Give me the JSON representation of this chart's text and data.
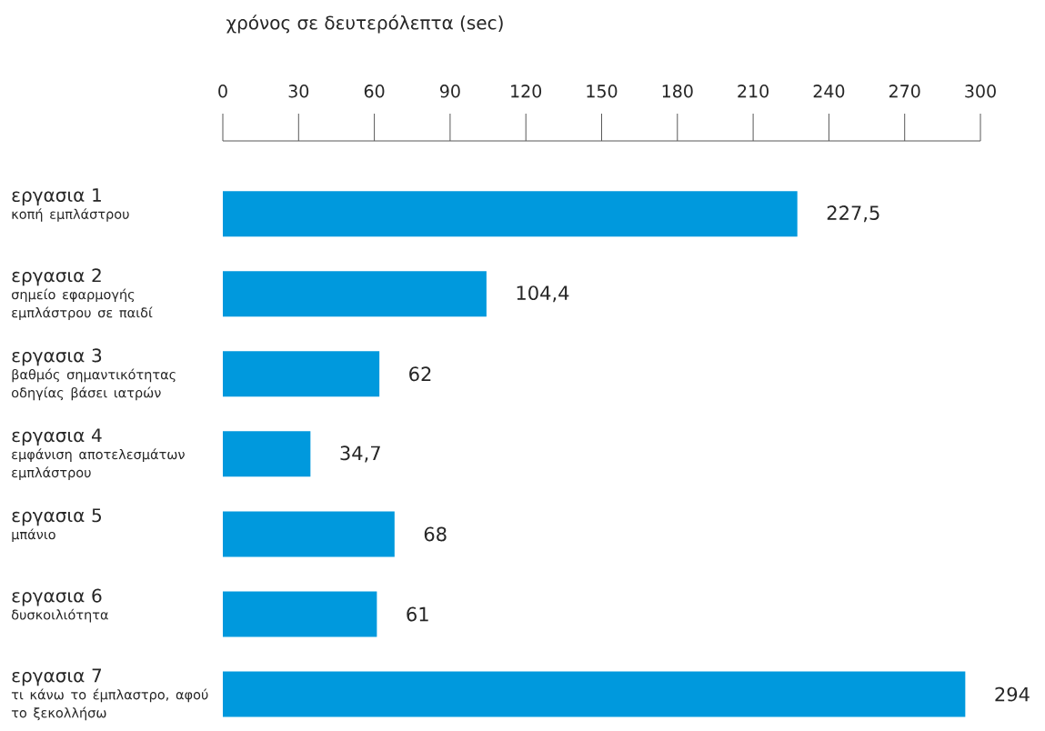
{
  "chart_data": {
    "type": "bar",
    "orientation": "horizontal",
    "xlabel": "χρόνος σε δευτερόλεπτα (sec)",
    "categories": [
      "εργασια 1",
      "εργασια 2",
      "εργασια 3",
      "εργασια 4",
      "εργασια 5",
      "εργασια 6",
      "εργασια 7"
    ],
    "annotations": [
      "κοπή εμπλάστρου",
      "σημείο εφαρμογής εμπλάστρου σε παιδί",
      "βαθμός σημαντικότητας οδηγίας βάσει ιατρών",
      "εμφάνιση αποτελεσμάτων εμπλάστρου",
      "μπάνιο",
      "δυσκοιλιότητα",
      "τι κάνω το έμπλαστρο, αφού το ξεκολλήσω"
    ],
    "values": [
      227.5,
      104.4,
      62,
      34.7,
      68,
      61,
      294
    ],
    "value_labels": [
      "227,5",
      "104,4",
      "62",
      "34,7",
      "68",
      "61",
      "294"
    ],
    "color": "#0099dd",
    "xlim": [
      0,
      300
    ],
    "xticks": [
      0,
      30,
      60,
      90,
      120,
      150,
      180,
      210,
      240,
      270,
      300
    ],
    "grid": false
  }
}
